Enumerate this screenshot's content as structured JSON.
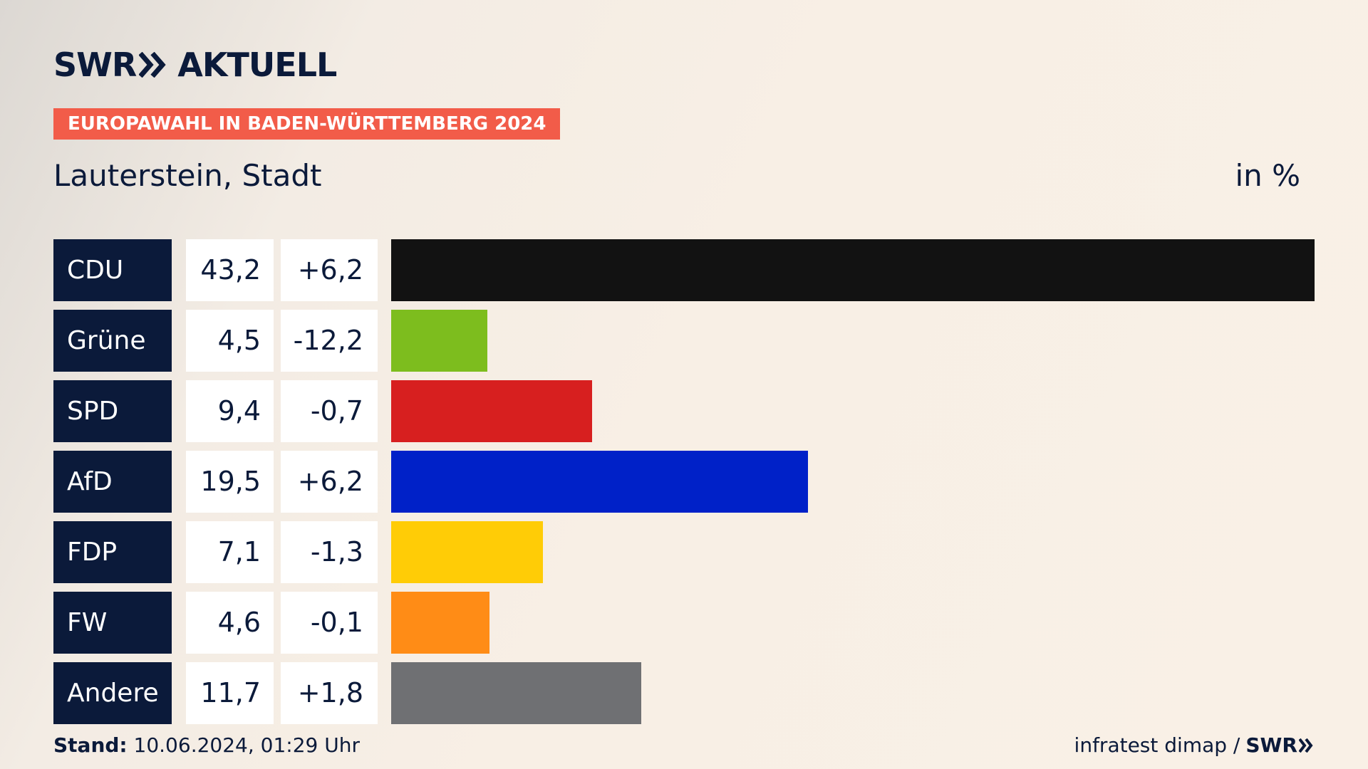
{
  "brand": {
    "swr": "SWR",
    "aktuell": "AKTUELL"
  },
  "tag": "EUROPAWAHL IN BADEN-WÜRTTEMBERG 2024",
  "subtitle": "Lauterstein, Stadt",
  "unit": "in %",
  "footer": {
    "stand_label": "Stand:",
    "stand_value": "10.06.2024, 01:29 Uhr",
    "source": "infratest dimap /",
    "source_brand": "SWR"
  },
  "chart_data": {
    "type": "bar",
    "orientation": "horizontal",
    "categories": [
      "CDU",
      "Grüne",
      "SPD",
      "AfD",
      "FDP",
      "FW",
      "Andere"
    ],
    "values": [
      43.2,
      4.5,
      9.4,
      19.5,
      7.1,
      4.6,
      11.7
    ],
    "value_labels": [
      "43,2",
      "4,5",
      "9,4",
      "19,5",
      "7,1",
      "4,6",
      "11,7"
    ],
    "diff_labels": [
      "+6,2",
      "-12,2",
      "-0,7",
      "+6,2",
      "-1,3",
      "-0,1",
      "+1,8"
    ],
    "diffs": [
      6.2,
      -12.2,
      -0.7,
      6.2,
      -1.3,
      -0.1,
      1.8
    ],
    "colors": [
      "#121212",
      "#7dbd1e",
      "#d71f1f",
      "#0021c8",
      "#ffcc06",
      "#ff8c16",
      "#6f7073"
    ],
    "xlim": [
      0,
      43.2
    ],
    "grid": false,
    "legend": "none"
  }
}
